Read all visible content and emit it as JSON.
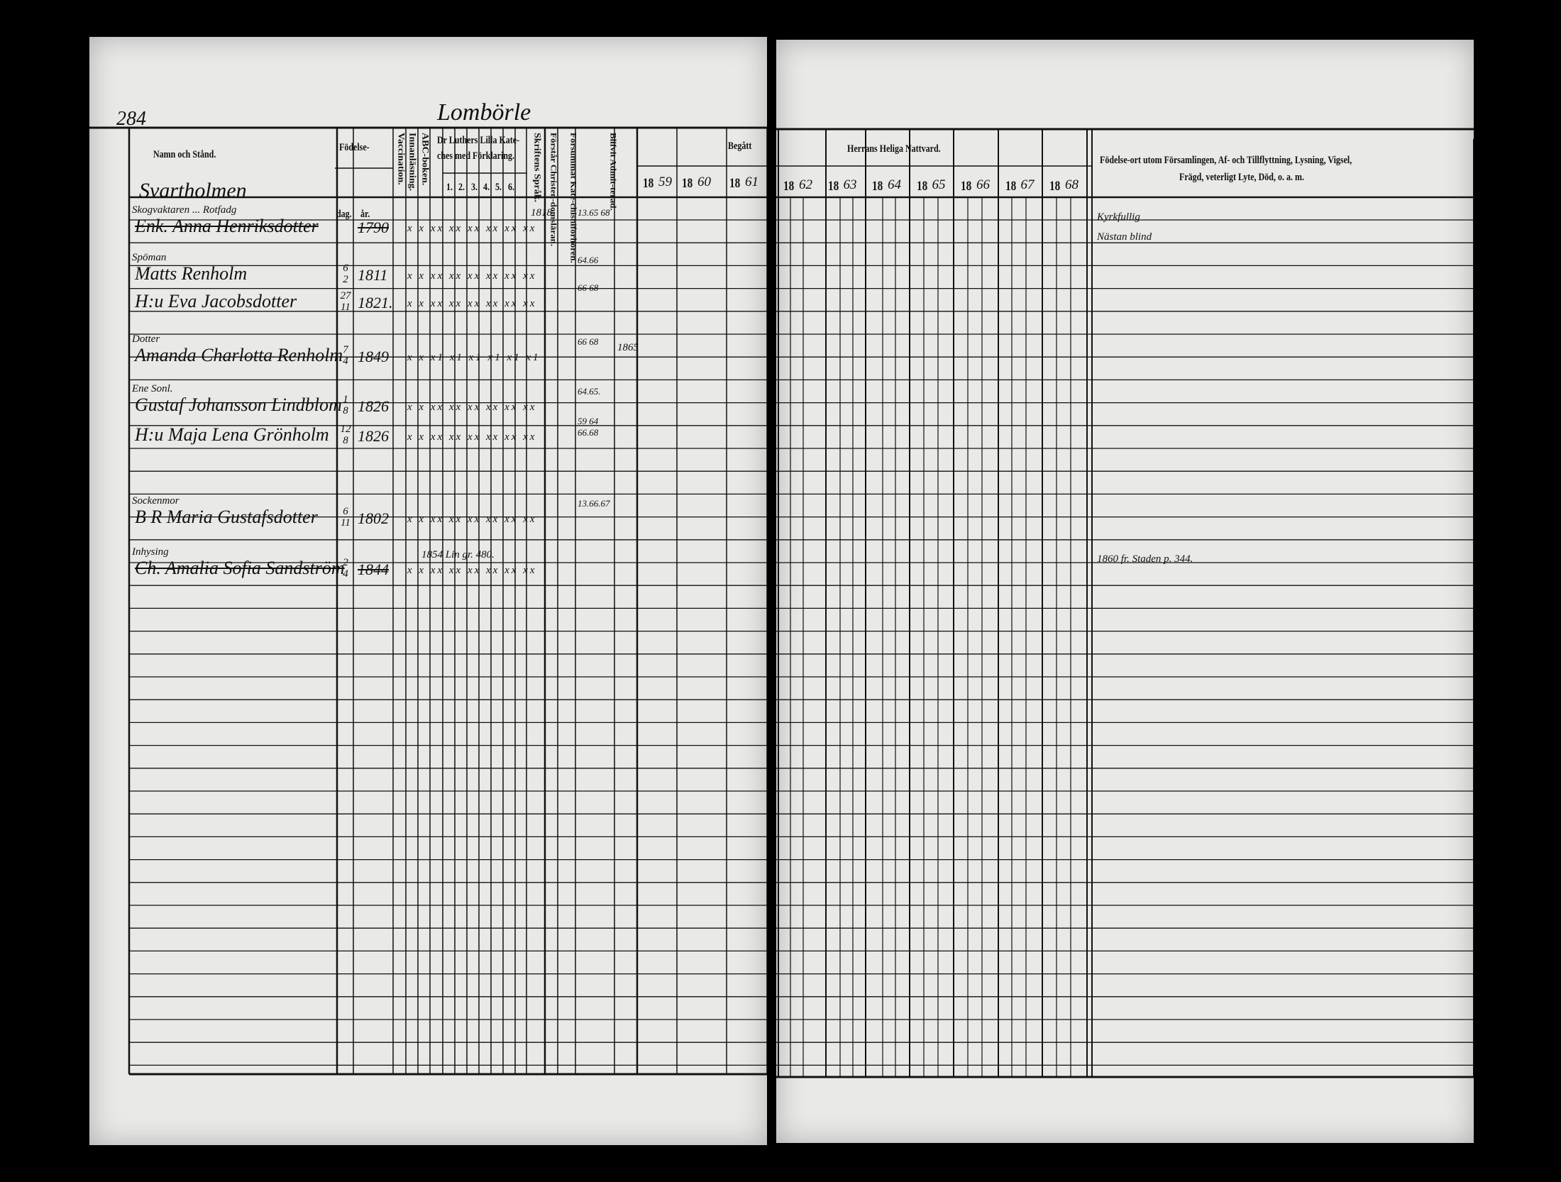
{
  "page_number": "284",
  "village": "Lombörle",
  "household": "Svartholmen",
  "headers": {
    "name": "Namn och Stånd.",
    "birth": "Födelse-",
    "day": "dag.",
    "year": "år.",
    "vaccination": "Vaccination.",
    "reading": "Innanläsning.",
    "abc": "ABC-boken.",
    "catechism": "Dr Luthers Lilla Katechesmed Förklaring.",
    "catechism_line1": "Dr Luthers Lilla Kate-",
    "catechism_line2": "ches med Förklaring.",
    "catechism_parts": [
      "1.",
      "2.",
      "3.",
      "4.",
      "5.",
      "6."
    ],
    "scripture": "Skriftens Språk.",
    "understands": "Förstår Christen-domsläran.",
    "missed": "Försummat Kate-chisniförhören.",
    "admitted": "Blifvit Admit-terad.",
    "begatt": "Begått",
    "communion": "Herrans Heliga Nattvard.",
    "remarks_line1": "Födelse-ort utom Församlingen, Af- och Tillflyttning, Lysning, Vigsel,",
    "remarks_line2": "Frägd, veterligt Lyte, Död, o. a. m."
  },
  "years_left": [
    {
      "prefix": "18",
      "suffix": "59"
    },
    {
      "prefix": "18",
      "suffix": "60"
    },
    {
      "prefix": "18",
      "suffix": "61"
    }
  ],
  "years_right": [
    {
      "prefix": "18",
      "suffix": "62"
    },
    {
      "prefix": "18",
      "suffix": "63"
    },
    {
      "prefix": "18",
      "suffix": "64"
    },
    {
      "prefix": "18",
      "suffix": "65"
    },
    {
      "prefix": "18",
      "suffix": "66"
    },
    {
      "prefix": "18",
      "suffix": "67"
    },
    {
      "prefix": "18",
      "suffix": "68"
    }
  ],
  "entries": [
    {
      "role": "Skogvaktaren ... Rotfadg",
      "name": "Enk. Anna Henriksdotter",
      "day": "",
      "month": "",
      "year": "1790",
      "struck": true,
      "marks": "x x xx xx xx xx xx xx",
      "scripture": "1818.",
      "missed": "13.65 68",
      "remarks": "Kyrkfullig",
      "remarks2": "Nästan blind"
    },
    {
      "role": "Spöman",
      "name": "Matts Renholm",
      "day": "6",
      "month": "2",
      "year": "1811",
      "struck": false,
      "marks": "x x xx xx xx xx xx xx",
      "missed": "64.66"
    },
    {
      "role": "",
      "name": "H:u Eva Jacobsdotter",
      "day": "27",
      "month": "11",
      "year": "1821.",
      "struck": false,
      "marks": "x x xx xx xx xx xx xx",
      "missed": "66 68"
    },
    {
      "role": "Dotter",
      "name": "Amanda Charlotta Renholm",
      "day": "7",
      "month": "4",
      "year": "1849",
      "struck": false,
      "marks": "x x x1 x1 x1 x1 x1 x1",
      "missed": "66 68",
      "admitted": "1865"
    },
    {
      "role": "Ene Sonl.",
      "name": "Gustaf Johansson Lindblom",
      "day": "1",
      "month": "8",
      "year": "1826",
      "struck": false,
      "marks": "x x xx xx xx xx xx xx",
      "missed": "64.65."
    },
    {
      "role": "",
      "name": "H:u Maja Lena Grönholm",
      "day": "12",
      "month": "8",
      "year": "1826",
      "struck": false,
      "marks": "x x xx xx xx xx xx xx",
      "missed": "59 64 66.68"
    },
    {
      "role": "Sockenmor",
      "name": "B R Maria Gustafsdotter",
      "day": "6",
      "month": "11",
      "year": "1802",
      "struck": false,
      "marks": "x x xx xx xx xx xx xx",
      "missed": "13.66.67"
    },
    {
      "role": "Inhysing",
      "name": "Ch. Amalia Sofia Sandström",
      "day": "2",
      "month": "4",
      "year": "1844",
      "struck": true,
      "marks": "x x xx xx xx xx xx xx",
      "scripture": "1854 Lin gr. 480.",
      "remarks": "1860 fr. Staden p. 344."
    }
  ]
}
